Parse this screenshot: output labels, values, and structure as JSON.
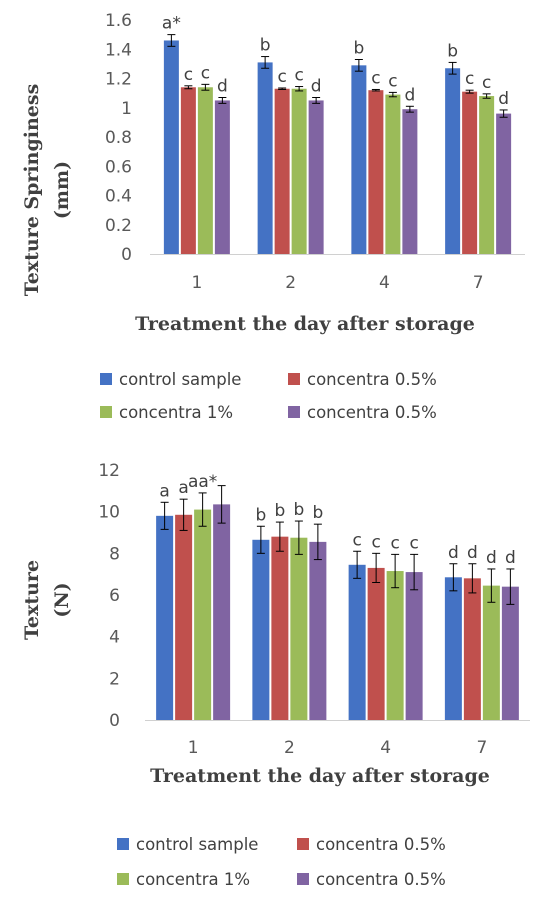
{
  "chart_data": [
    {
      "type": "bar",
      "xlabel": "Treatment the day after storage",
      "ylabel": "Texture Springiness (mm)",
      "ylabel_lines": [
        "Texture Springiness",
        "(mm)"
      ],
      "categories": [
        "1",
        "2",
        "4",
        "7"
      ],
      "ylim": [
        0,
        1.6
      ],
      "yticks": [
        "0",
        "0.2",
        "0.4",
        "0.6",
        "0.8",
        "1",
        "1.2",
        "1.4",
        "1.6"
      ],
      "grid": false,
      "legend_position": "bottom",
      "series": [
        {
          "name": "control sample",
          "color": "#4472c4",
          "values": [
            1.46,
            1.31,
            1.29,
            1.27
          ],
          "errors": [
            0.04,
            0.04,
            0.04,
            0.04
          ],
          "labels": [
            "a*",
            "b",
            "b",
            "b"
          ]
        },
        {
          "name": "concentra 0.5%",
          "color": "#c0504d",
          "values": [
            1.14,
            1.13,
            1.12,
            1.11
          ],
          "errors": [
            0.01,
            0.005,
            0.005,
            0.01
          ],
          "labels": [
            "c",
            "c",
            "c",
            "c"
          ]
        },
        {
          "name": "concentra 1%",
          "color": "#9bbb59",
          "values": [
            1.14,
            1.13,
            1.09,
            1.08
          ],
          "errors": [
            0.02,
            0.015,
            0.015,
            0.015
          ],
          "labels": [
            "c",
            "c",
            "c",
            "c"
          ]
        },
        {
          "name": "concentra 0.5%",
          "color": "#8064a2",
          "values": [
            1.05,
            1.05,
            0.99,
            0.96
          ],
          "errors": [
            0.02,
            0.02,
            0.02,
            0.025
          ],
          "labels": [
            "d",
            "d",
            "d",
            "d"
          ]
        }
      ]
    },
    {
      "type": "bar",
      "xlabel": "Treatment the day after storage",
      "ylabel": "Texture (N)",
      "ylabel_lines": [
        "Texture",
        "(N)"
      ],
      "categories": [
        "1",
        "2",
        "4",
        "7"
      ],
      "ylim": [
        0,
        12
      ],
      "yticks": [
        "0",
        "2",
        "4",
        "6",
        "8",
        "10",
        "12"
      ],
      "grid": false,
      "legend_position": "bottom",
      "series": [
        {
          "name": "control sample",
          "color": "#4472c4",
          "values": [
            9.8,
            8.65,
            7.45,
            6.85
          ],
          "errors": [
            0.65,
            0.65,
            0.65,
            0.65
          ],
          "labels": [
            "a",
            "b",
            "c",
            "d"
          ]
        },
        {
          "name": "concentra 0.5%",
          "color": "#c0504d",
          "values": [
            9.85,
            8.8,
            7.3,
            6.8
          ],
          "errors": [
            0.75,
            0.7,
            0.7,
            0.7
          ],
          "labels": [
            "a",
            "b",
            "c",
            "d"
          ]
        },
        {
          "name": "concentra 1%",
          "color": "#9bbb59",
          "values": [
            10.1,
            8.75,
            7.15,
            6.45
          ],
          "errors": [
            0.8,
            0.8,
            0.8,
            0.8
          ],
          "labels": [
            "aa*",
            "b",
            "c",
            "d"
          ]
        },
        {
          "name": "concentra 0.5%",
          "color": "#8064a2",
          "values": [
            10.35,
            8.55,
            7.1,
            6.4
          ],
          "errors": [
            0.9,
            0.85,
            0.85,
            0.85
          ],
          "labels": [
            "",
            "b",
            "c",
            "d"
          ]
        }
      ]
    }
  ]
}
